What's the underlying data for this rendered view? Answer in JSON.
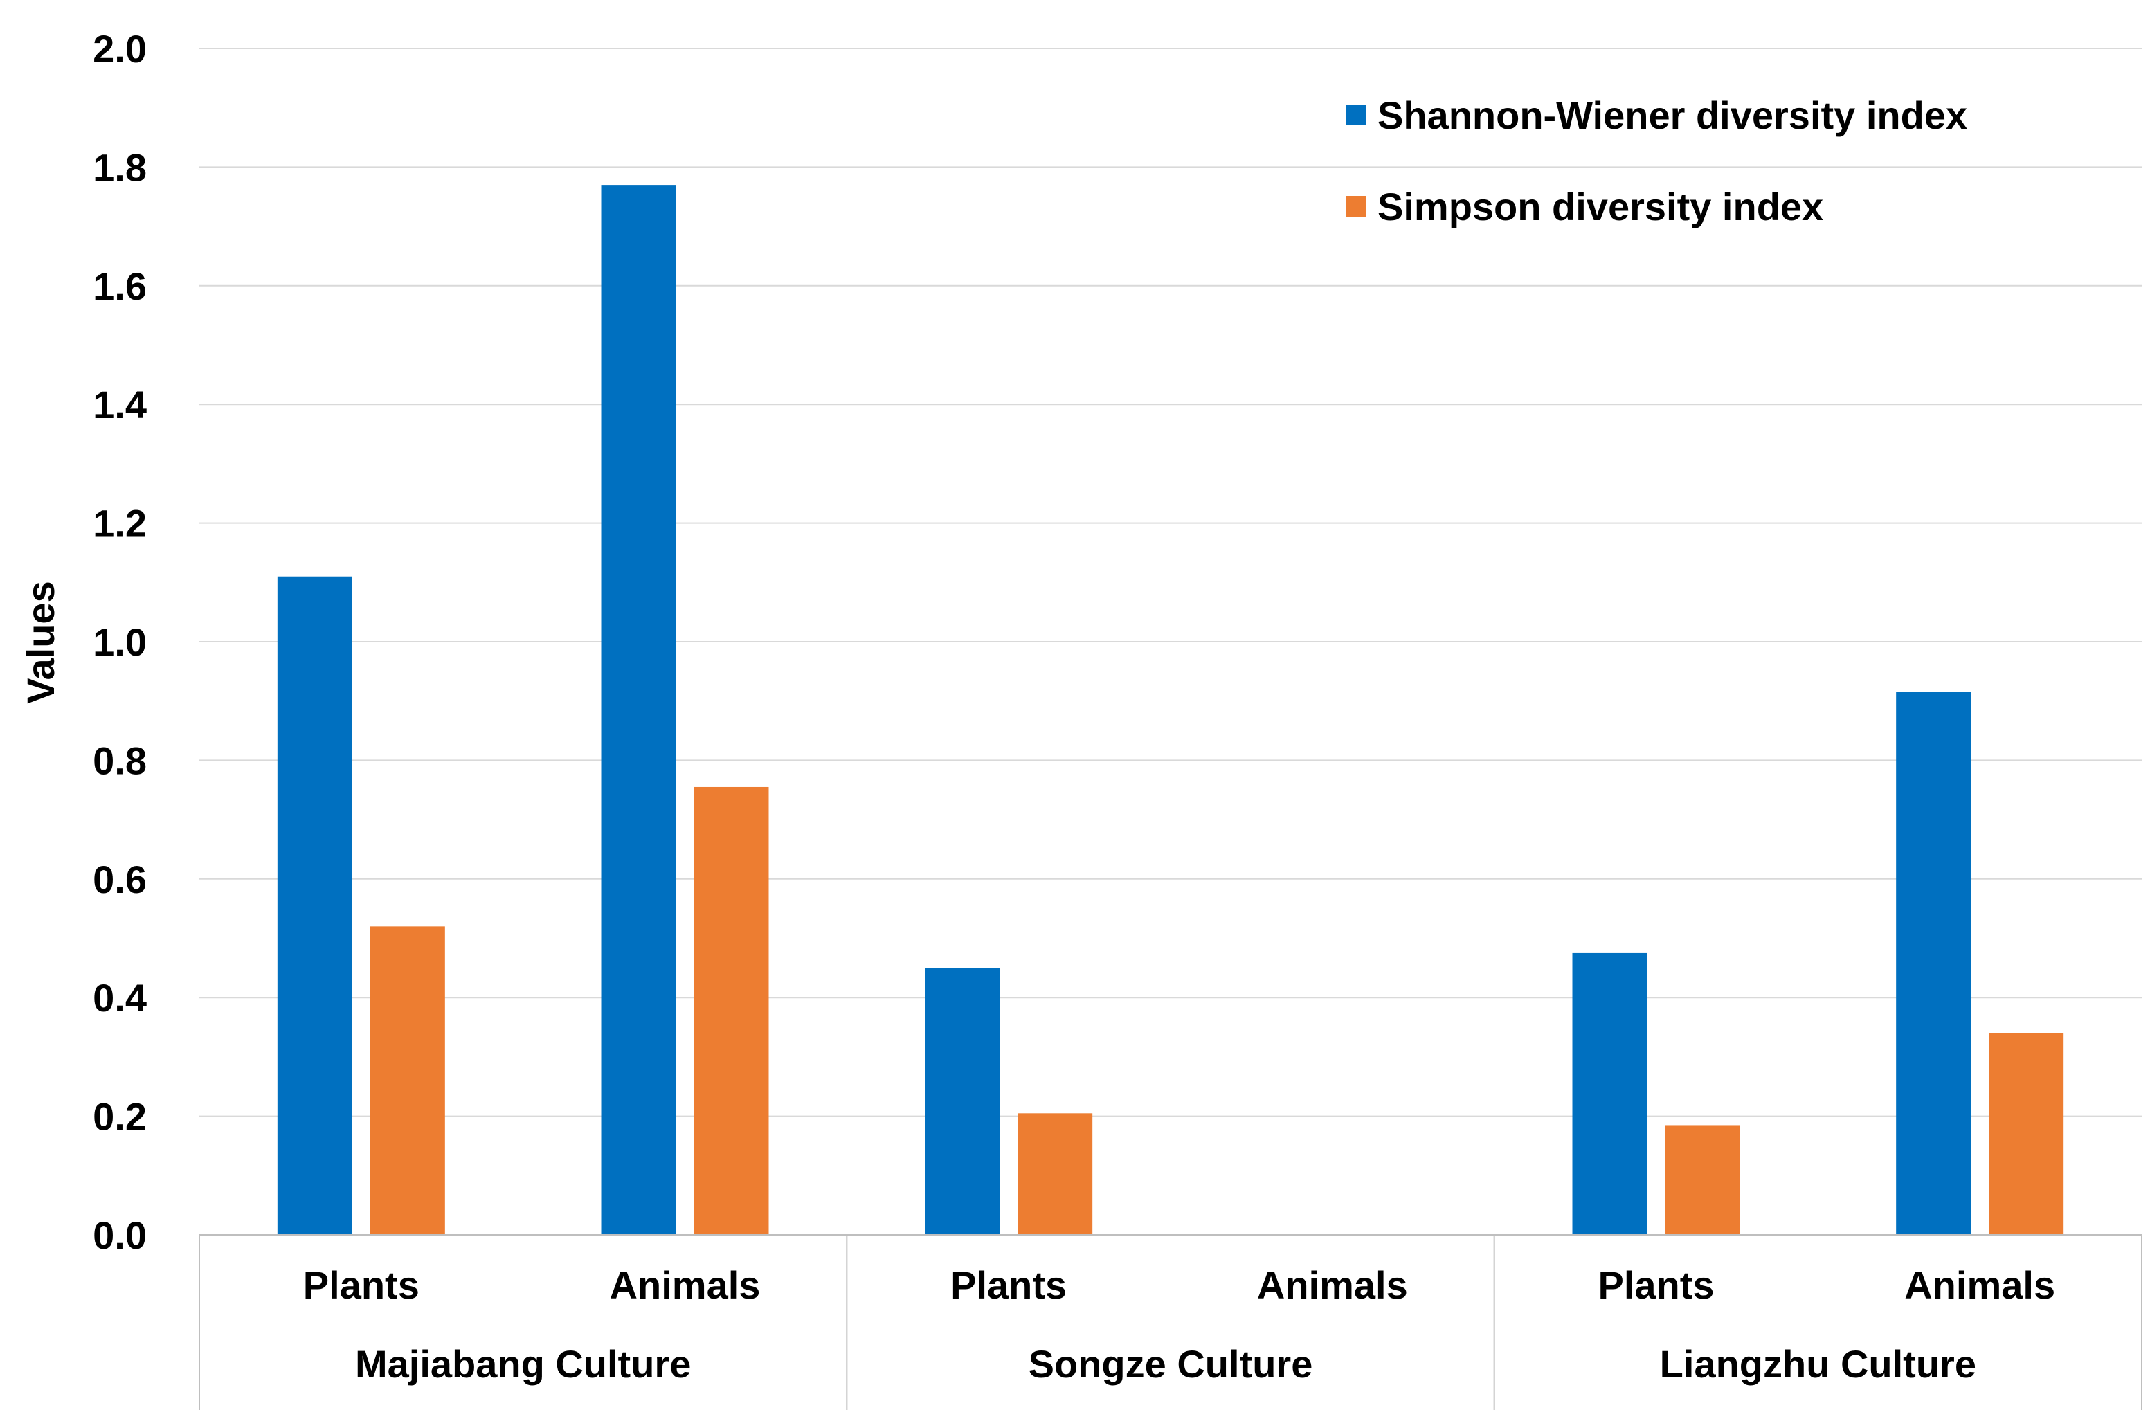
{
  "chart_data": {
    "type": "bar",
    "title": "",
    "xlabel": "",
    "ylabel": "Values",
    "ylim": [
      0,
      2.0
    ],
    "yticks": [
      "0.0",
      "0.2",
      "0.4",
      "0.6",
      "0.8",
      "1.0",
      "1.2",
      "1.4",
      "1.6",
      "1.8",
      "2.0"
    ],
    "grid": true,
    "legend_position": "top-right",
    "groups": [
      {
        "label": "Majiabang Culture",
        "categories": [
          "Plants",
          "Animals"
        ]
      },
      {
        "label": "Songze Culture",
        "categories": [
          "Plants",
          "Animals"
        ]
      },
      {
        "label": "Liangzhu Culture",
        "categories": [
          "Plants",
          "Animals"
        ]
      }
    ],
    "categories": [
      "Plants",
      "Animals",
      "Plants",
      "Animals",
      "Plants",
      "Animals"
    ],
    "series": [
      {
        "name": "Shannon-Wiener diversity index",
        "color": "#0070c0",
        "values": [
          1.11,
          1.77,
          0.45,
          0,
          0.475,
          0.915
        ]
      },
      {
        "name": "Simpson diversity index",
        "color": "#ed7d31",
        "values": [
          0.52,
          0.755,
          0.205,
          0,
          0.185,
          0.34
        ]
      }
    ]
  }
}
